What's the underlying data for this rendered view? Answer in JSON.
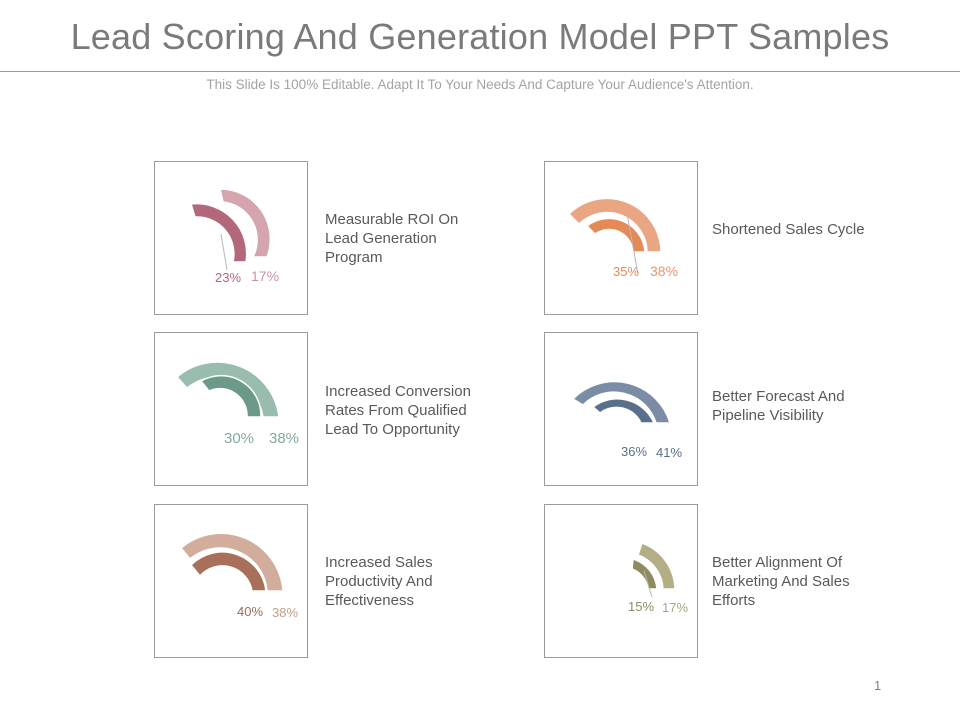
{
  "slide": {
    "title": "Lead Scoring And Generation Model PPT Samples",
    "subtitle": "This Slide Is 100% Editable. Adapt It To Your Needs And Capture Your Audience's Attention.",
    "page_number": "1"
  },
  "cards": [
    {
      "label": "Measurable ROI On Lead Generation Program",
      "inner_pct": "23%",
      "outer_pct": "17%",
      "inner_color": "#b2687a",
      "outer_color": "#d4a4af",
      "text_color_inner": "#b2687a",
      "text_color_outer": "#c9939f"
    },
    {
      "label": "Shortened Sales Cycle",
      "inner_pct": "35%",
      "outer_pct": "38%",
      "inner_color": "#e38a57",
      "outer_color": "#eaa583",
      "text_color_inner": "#e38a57",
      "text_color_outer": "#e49870"
    },
    {
      "label": "Increased Conversion Rates From Qualified Lead To Opportunity",
      "inner_pct": "30%",
      "outer_pct": "38%",
      "inner_color": "#6c9a88",
      "outer_color": "#98bcae",
      "text_color_inner": "#84aa9b",
      "text_color_outer": "#84aa9b"
    },
    {
      "label": "Better Forecast And Pipeline Visibility",
      "inner_pct": "36%",
      "outer_pct": "41%",
      "inner_color": "#5a6f8c",
      "outer_color": "#7b8ca6",
      "text_color_inner": "#5a6f8c",
      "text_color_outer": "#5a6f8c"
    },
    {
      "label": "Increased Sales Productivity And Effectiveness",
      "inner_pct": "40%",
      "outer_pct": "38%",
      "inner_color": "#a86f5b",
      "outer_color": "#d2ad9c",
      "text_color_inner": "#9c6b57",
      "text_color_outer": "#c59d8b"
    },
    {
      "label": "Better Alignment Of Marketing And Sales Efforts",
      "inner_pct": "15%",
      "outer_pct": "17%",
      "inner_color": "#8e8c5e",
      "outer_color": "#b2ae86",
      "text_color_inner": "#8e8c5e",
      "text_color_outer": "#a7a37a"
    }
  ]
}
